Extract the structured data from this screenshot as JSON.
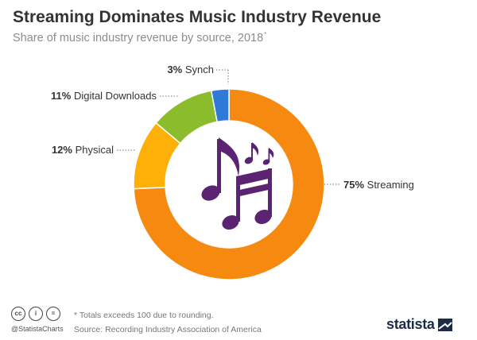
{
  "header": {
    "title": "Streaming Dominates Music Industry Revenue",
    "subtitle": "Share of music industry revenue by source, 2018",
    "subtitle_marker": "*"
  },
  "chart_data": {
    "type": "pie",
    "variant": "donut",
    "slices": [
      {
        "label": "Streaming",
        "value": 75,
        "display": "75%",
        "color": "#f68a11"
      },
      {
        "label": "Physical",
        "value": 12,
        "display": "12%",
        "color": "#fdb108"
      },
      {
        "label": "Digital Downloads",
        "value": 11,
        "display": "11%",
        "color": "#8bbc2c"
      },
      {
        "label": "Synch",
        "value": 3,
        "display": "3%",
        "color": "#2f79d8"
      }
    ],
    "center_icon": "music-notes-icon",
    "center_icon_color": "#5a2472"
  },
  "footer": {
    "license_icons": [
      "cc-icon",
      "by-icon",
      "nd-icon"
    ],
    "license_glyphs": [
      "cc",
      "i",
      "="
    ],
    "handle": "@StatistaCharts",
    "note": "* Totals exceeds 100 due to rounding.",
    "source": "Source: Recording Industry Association of America",
    "logo_text": "statista",
    "logo_color": "#1d2c46"
  }
}
